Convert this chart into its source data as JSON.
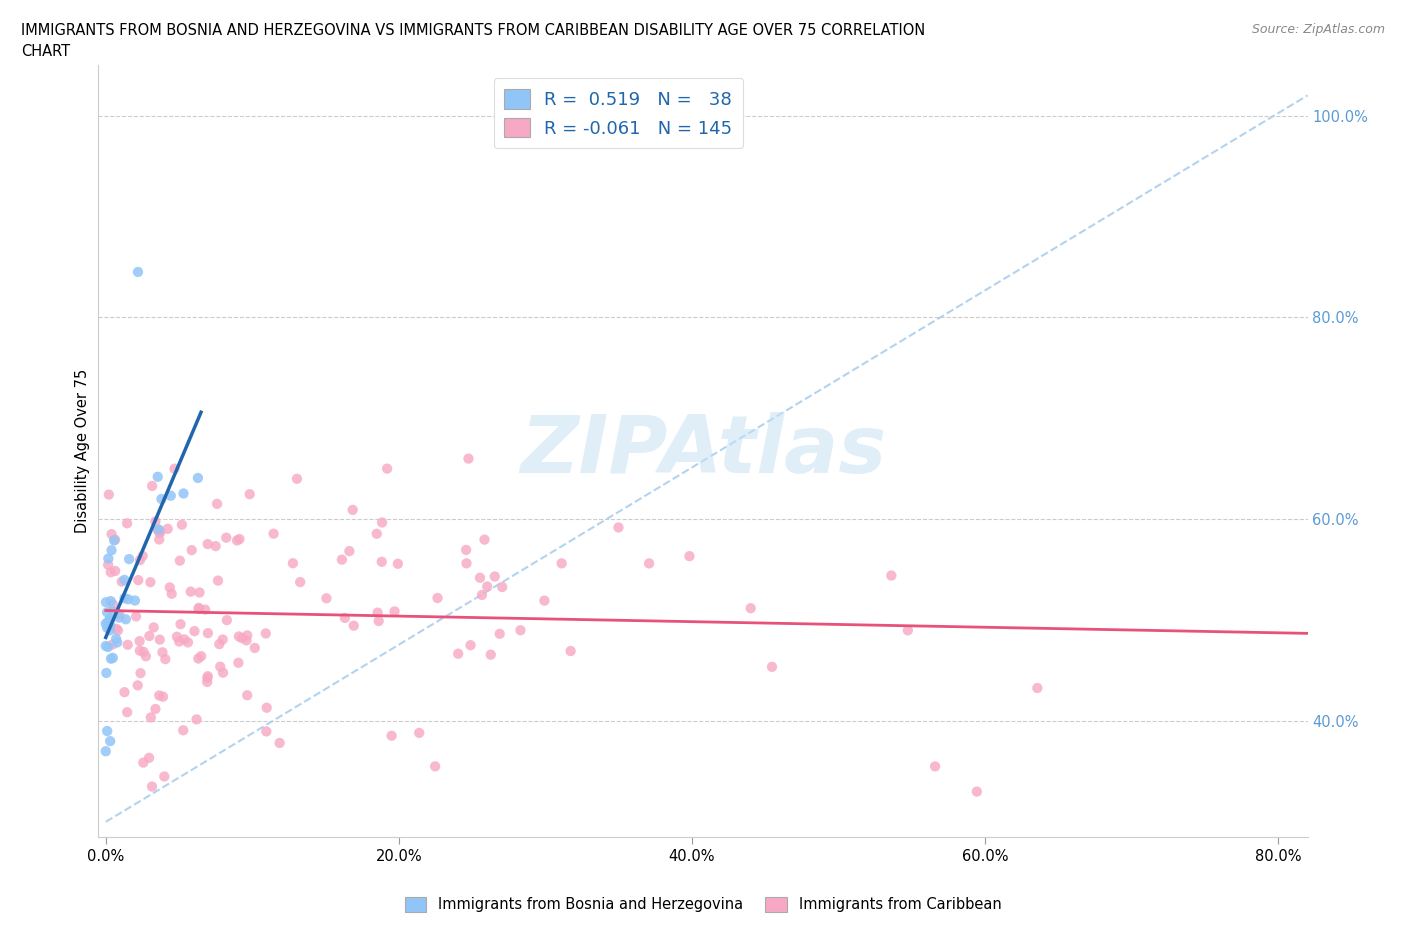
{
  "title_line1": "IMMIGRANTS FROM BOSNIA AND HERZEGOVINA VS IMMIGRANTS FROM CARIBBEAN DISABILITY AGE OVER 75 CORRELATION",
  "title_line2": "CHART",
  "source": "Source: ZipAtlas.com",
  "ylabel": "Disability Age Over 75",
  "color_bosnia": "#92c5f7",
  "color_caribbean": "#f7a8c4",
  "color_regression_bosnia": "#2166ac",
  "color_regression_caribbean": "#e8527a",
  "color_dashed": "#aacfee",
  "legend_label1": "Immigrants from Bosnia and Herzegovina",
  "legend_label2": "Immigrants from Caribbean",
  "xlim": [
    -0.005,
    0.82
  ],
  "ylim": [
    0.285,
    1.05
  ],
  "x_ticks": [
    0.0,
    0.2,
    0.4,
    0.6,
    0.8
  ],
  "y_ticks_right": [
    0.4,
    0.6,
    0.8,
    1.0
  ],
  "watermark_text": "ZIPAtlas",
  "bosnia_seed": 101,
  "caribbean_seed": 202
}
